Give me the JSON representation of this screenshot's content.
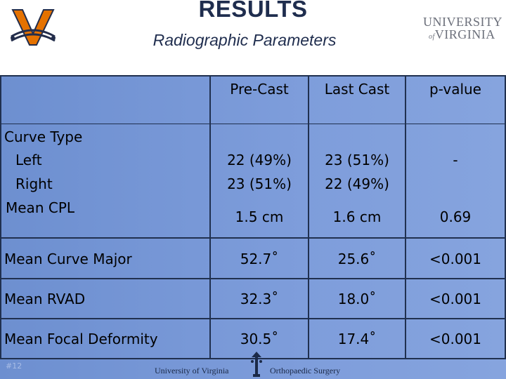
{
  "header": {
    "title": "RESULTS",
    "subtitle": "Radiographic Parameters",
    "uva_line1": "UNIVERSITY",
    "uva_of": "of",
    "uva_line2": "VIRGINIA"
  },
  "table": {
    "columns": [
      "Pre-Cast",
      "Last Cast",
      "p-value"
    ],
    "curve_type_label": "Curve Type",
    "left_label": "Left",
    "right_label": "Right",
    "mean_cpl_label": "Mean CPL",
    "left_precast": "22 (49%)",
    "left_lastcast": "23 (51%)",
    "right_precast": "23 (51%)",
    "right_lastcast": "22 (49%)",
    "curve_type_pvalue": "-",
    "cpl_precast": "1.5 cm",
    "cpl_lastcast": "1.6 cm",
    "cpl_pvalue": "0.69",
    "rows": [
      {
        "label": "Mean Curve Major",
        "precast": "52.7˚",
        "lastcast": "25.6˚",
        "pvalue": "<0.001"
      },
      {
        "label": "Mean RVAD",
        "precast": "32.3˚",
        "lastcast": "18.0˚",
        "pvalue": "<0.001"
      },
      {
        "label": "Mean Focal Deformity",
        "precast": "30.5˚",
        "lastcast": "17.4˚",
        "pvalue": "<0.001"
      }
    ]
  },
  "footer": {
    "left": "University of Virginia",
    "right": "Orthopaedic Surgery",
    "slide_no": "#12"
  },
  "colors": {
    "panel": "#7e9ddb",
    "grid": "#20304f",
    "uva_orange": "#e57200",
    "uva_navy": "#232d4b"
  }
}
